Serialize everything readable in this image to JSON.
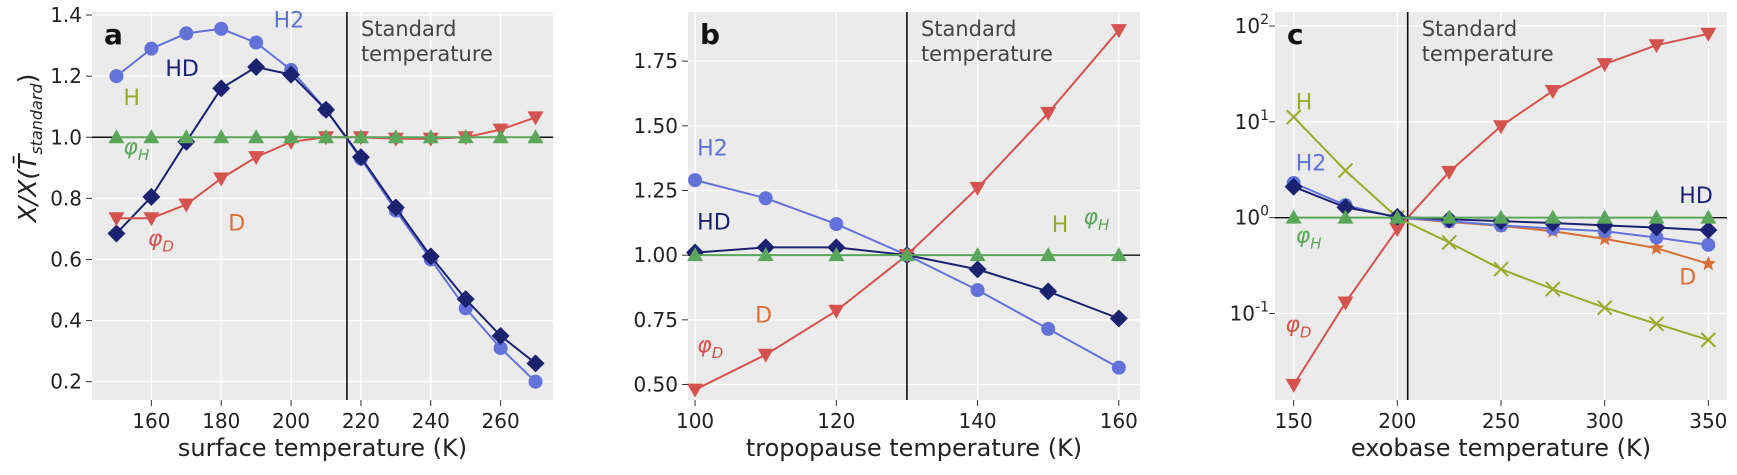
{
  "figure": {
    "ylabel_main": "X/X(T̄",
    "ylabel_sub": "standard",
    "ylabel_close": ")"
  },
  "colors": {
    "H2": "#6272d8",
    "HD": "#1b2370",
    "D": "#d4534f",
    "phi_H": "#5aa65a",
    "H": "#9aaa2a",
    "D_orange": "#d9703a",
    "axes_bg": "#ebebeb",
    "ref_line": "#111111"
  },
  "chart_data": [
    {
      "type": "line",
      "panel_label": "a",
      "xlabel": "surface temperature (K)",
      "xlim": [
        143,
        275
      ],
      "ylim": [
        0.14,
        1.41
      ],
      "xticks": [
        160,
        180,
        200,
        220,
        240,
        260
      ],
      "yticks": [
        0.2,
        0.4,
        0.6,
        0.8,
        1.0,
        1.2,
        1.4
      ],
      "ytick_labels": [
        "0.2",
        "0.4",
        "0.6",
        "0.8",
        "1.0",
        "1.2",
        "1.4"
      ],
      "standard_line": 216,
      "standard_label": [
        "Standard",
        "temperature"
      ],
      "series": [
        {
          "key": "H2",
          "marker": "circle",
          "x": [
            150,
            160,
            170,
            180,
            190,
            200,
            210,
            220,
            230,
            240,
            250,
            260,
            270
          ],
          "y": [
            1.2,
            1.29,
            1.34,
            1.355,
            1.31,
            1.22,
            1.09,
            0.93,
            0.76,
            0.6,
            0.44,
            0.31,
            0.2
          ]
        },
        {
          "key": "HD",
          "marker": "diamond",
          "x": [
            150,
            160,
            170,
            180,
            190,
            200,
            210,
            220,
            230,
            240,
            250,
            260,
            270
          ],
          "y": [
            0.685,
            0.805,
            0.985,
            1.16,
            1.23,
            1.205,
            1.09,
            0.935,
            0.77,
            0.61,
            0.47,
            0.35,
            0.26
          ]
        },
        {
          "key": "D",
          "marker": "triangle-down",
          "x": [
            150,
            160,
            170,
            180,
            190,
            200,
            210,
            220,
            230,
            240,
            250,
            260,
            270
          ],
          "y": [
            0.735,
            0.735,
            0.78,
            0.865,
            0.935,
            0.985,
            1.0,
            1.0,
            0.995,
            0.995,
            1.0,
            1.025,
            1.065
          ]
        },
        {
          "key": "phi_H",
          "marker": "triangle-up",
          "x": [
            150,
            160,
            170,
            180,
            190,
            200,
            210,
            220,
            230,
            240,
            250,
            260,
            270
          ],
          "y": [
            1,
            1,
            1,
            1,
            1,
            1,
            1,
            1,
            1,
            1,
            1,
            1,
            1
          ]
        }
      ],
      "annotations": [
        {
          "text": "H2",
          "x": 195,
          "y": 1.36,
          "color": "H2"
        },
        {
          "text": "HD",
          "x": 164,
          "y": 1.2,
          "color": "HD"
        },
        {
          "text": "H",
          "x": 152,
          "y": 1.105,
          "color": "H"
        },
        {
          "text": "φ",
          "sub": "H",
          "x": 152,
          "y": 0.945,
          "color": "phi_H"
        },
        {
          "text": "D",
          "x": 182,
          "y": 0.695,
          "color": "D_orange"
        },
        {
          "text": "φ",
          "sub": "D",
          "x": 159,
          "y": 0.645,
          "color": "D"
        }
      ]
    },
    {
      "type": "line",
      "panel_label": "b",
      "xlabel": "tropopause temperature (K)",
      "xlim": [
        99,
        163
      ],
      "ylim": [
        0.44,
        1.94
      ],
      "xticks": [
        100,
        120,
        140,
        160
      ],
      "yticks": [
        0.5,
        0.75,
        1.0,
        1.25,
        1.5,
        1.75
      ],
      "ytick_labels": [
        "0.50",
        "0.75",
        "1.00",
        "1.25",
        "1.50",
        "1.75"
      ],
      "standard_line": 130,
      "standard_label": [
        "Standard",
        "temperature"
      ],
      "series": [
        {
          "key": "H2",
          "marker": "circle",
          "x": [
            100,
            110,
            120,
            130,
            140,
            150,
            160
          ],
          "y": [
            1.29,
            1.22,
            1.12,
            1.0,
            0.865,
            0.715,
            0.565
          ]
        },
        {
          "key": "HD",
          "marker": "diamond",
          "x": [
            100,
            110,
            120,
            130,
            140,
            150,
            160
          ],
          "y": [
            1.01,
            1.03,
            1.03,
            1.0,
            0.945,
            0.86,
            0.755
          ]
        },
        {
          "key": "D",
          "marker": "triangle-down",
          "x": [
            100,
            110,
            120,
            130,
            140,
            150,
            160
          ],
          "y": [
            0.48,
            0.615,
            0.785,
            1.0,
            1.26,
            1.55,
            1.87
          ]
        },
        {
          "key": "phi_H",
          "marker": "triangle-up",
          "x": [
            100,
            110,
            120,
            130,
            140,
            150,
            160
          ],
          "y": [
            1,
            1,
            1,
            1,
            1,
            1,
            1
          ]
        }
      ],
      "annotations": [
        {
          "text": "H2",
          "x": 100.3,
          "y": 1.385,
          "color": "H2"
        },
        {
          "text": "HD",
          "x": 100.3,
          "y": 1.1,
          "color": "HD"
        },
        {
          "text": "H",
          "x": 150.5,
          "y": 1.09,
          "color": "H"
        },
        {
          "text": "φ",
          "sub": "H",
          "x": 155,
          "y": 1.12,
          "color": "phi_H"
        },
        {
          "text": "D",
          "x": 108.5,
          "y": 0.74,
          "color": "D_orange"
        },
        {
          "text": "φ",
          "sub": "D",
          "x": 100.3,
          "y": 0.625,
          "color": "D"
        }
      ]
    },
    {
      "type": "line",
      "panel_label": "c",
      "xlabel": "exobase temperature (K)",
      "log_y": true,
      "xlim": [
        141,
        359
      ],
      "ylim": [
        0.0125,
        140
      ],
      "xticks": [
        150,
        200,
        250,
        300,
        350
      ],
      "yticks": [
        0.1,
        1,
        10,
        100
      ],
      "ytick_labels": [
        [
          "10",
          "-1"
        ],
        [
          "10",
          "0"
        ],
        [
          "10",
          "1"
        ],
        [
          "10",
          "2"
        ]
      ],
      "standard_line": 205,
      "standard_label": [
        "Standard",
        "temperature"
      ],
      "series": [
        {
          "key": "H",
          "marker": "x",
          "x": [
            150,
            175,
            200,
            225,
            250,
            275,
            300,
            325,
            350
          ],
          "y": [
            11.2,
            3.1,
            1.0,
            0.55,
            0.29,
            0.18,
            0.115,
            0.078,
            0.053
          ]
        },
        {
          "key": "D",
          "marker": "triangle-down",
          "x": [
            150,
            175,
            200,
            225,
            250,
            275,
            300,
            325,
            350
          ],
          "y": [
            0.018,
            0.13,
            0.76,
            3.0,
            9.0,
            21,
            40,
            63,
            83
          ]
        },
        {
          "key": "D_orange",
          "marker": "star",
          "x": [
            200,
            225,
            250,
            275,
            300,
            325,
            350
          ],
          "y": [
            1.0,
            0.9,
            0.82,
            0.72,
            0.6,
            0.48,
            0.33
          ]
        },
        {
          "key": "H2",
          "marker": "circle",
          "x": [
            150,
            175,
            200,
            225,
            250,
            275,
            300,
            325,
            350
          ],
          "y": [
            2.3,
            1.35,
            1.0,
            0.92,
            0.83,
            0.77,
            0.72,
            0.62,
            0.52
          ]
        },
        {
          "key": "HD",
          "marker": "diamond",
          "x": [
            150,
            175,
            200,
            225,
            250,
            275,
            300,
            325,
            350
          ],
          "y": [
            2.1,
            1.28,
            1.02,
            0.96,
            0.92,
            0.88,
            0.83,
            0.79,
            0.74
          ]
        },
        {
          "key": "phi_H",
          "marker": "triangle-up",
          "x": [
            150,
            175,
            200,
            225,
            250,
            275,
            300,
            325,
            350
          ],
          "y": [
            1,
            1,
            1,
            1,
            1,
            1,
            1,
            1,
            1
          ]
        }
      ],
      "annotations": [
        {
          "text": "H",
          "x": 151,
          "y": 13.5,
          "color": "H"
        },
        {
          "text": "H2",
          "x": 151,
          "y": 3.1,
          "color": "H2"
        },
        {
          "text": "φ",
          "sub": "H",
          "x": 151,
          "y": 0.55,
          "color": "phi_H"
        },
        {
          "text": "φ",
          "sub": "D",
          "x": 146,
          "y": 0.065,
          "color": "D"
        },
        {
          "text": "HD",
          "x": 336,
          "y": 1.42,
          "color": "HD"
        },
        {
          "text": "D",
          "x": 336,
          "y": 0.2,
          "color": "D_orange"
        }
      ]
    }
  ]
}
